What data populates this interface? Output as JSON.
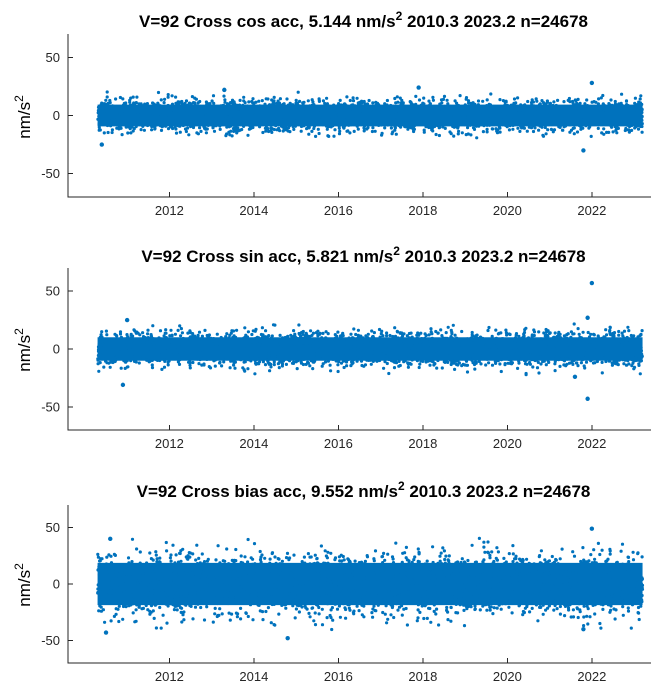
{
  "chart_data": [
    {
      "type": "scatter",
      "title": {
        "prefix": "V=92 Cross cos  acc,    5.144 nm/s",
        "sup": "2",
        "suffix": " 2010.3 2023.2  n=24678"
      },
      "ylabel": {
        "base": "nm/s",
        "sup": "2"
      },
      "xlim": [
        2009.6,
        2023.4
      ],
      "ylim": [
        -70,
        70
      ],
      "xticks": [
        "2012",
        "2014",
        "2016",
        "2018",
        "2020",
        "2022"
      ],
      "yticks": [
        "50",
        "0",
        "-50"
      ],
      "color": "#0072BD",
      "series": [
        {
          "x_range": [
            2010.3,
            2023.2
          ],
          "n": 24678,
          "mean": 0,
          "rms": 5.144,
          "core_halfwidth": 12,
          "extremes": [
            {
              "x": 2013.3,
              "y": 22
            },
            {
              "x": 2017.9,
              "y": 24
            },
            {
              "x": 2022.0,
              "y": 28
            },
            {
              "x": 2021.8,
              "y": -30
            },
            {
              "x": 2010.4,
              "y": -25
            }
          ]
        }
      ]
    },
    {
      "type": "scatter",
      "title": {
        "prefix": "V=92 Cross sin  acc,    5.821 nm/s",
        "sup": "2",
        "suffix": " 2010.3 2023.2  n=24678"
      },
      "ylabel": {
        "base": "nm/s",
        "sup": "2"
      },
      "xlim": [
        2009.6,
        2023.4
      ],
      "ylim": [
        -70,
        70
      ],
      "xticks": [
        "2012",
        "2014",
        "2016",
        "2018",
        "2020",
        "2022"
      ],
      "yticks": [
        "50",
        "0",
        "-50"
      ],
      "color": "#0072BD",
      "series": [
        {
          "x_range": [
            2010.3,
            2023.2
          ],
          "n": 24678,
          "mean": 0,
          "rms": 5.821,
          "core_halfwidth": 13,
          "extremes": [
            {
              "x": 2022.0,
              "y": 57
            },
            {
              "x": 2021.9,
              "y": 27
            },
            {
              "x": 2011.0,
              "y": 25
            },
            {
              "x": 2021.9,
              "y": -43
            },
            {
              "x": 2010.9,
              "y": -31
            },
            {
              "x": 2021.6,
              "y": -24
            }
          ]
        }
      ]
    },
    {
      "type": "scatter",
      "title": {
        "prefix": "V=92 Cross bias acc,    9.552 nm/s",
        "sup": "2",
        "suffix": " 2010.3 2023.2  n=24678"
      },
      "ylabel": {
        "base": "nm/s",
        "sup": "2"
      },
      "xlim": [
        2009.6,
        2023.4
      ],
      "ylim": [
        -70,
        70
      ],
      "xticks": [
        "2012",
        "2014",
        "2016",
        "2018",
        "2020",
        "2022"
      ],
      "yticks": [
        "50",
        "0",
        "-50"
      ],
      "color": "#0072BD",
      "series": [
        {
          "x_range": [
            2010.3,
            2023.2
          ],
          "n": 24678,
          "mean": 0,
          "rms": 9.552,
          "core_halfwidth": 24,
          "extremes": [
            {
              "x": 2022.0,
              "y": 49
            },
            {
              "x": 2014.8,
              "y": -48
            },
            {
              "x": 2010.6,
              "y": 40
            },
            {
              "x": 2010.5,
              "y": -43
            },
            {
              "x": 2021.8,
              "y": -40
            }
          ]
        }
      ]
    }
  ]
}
